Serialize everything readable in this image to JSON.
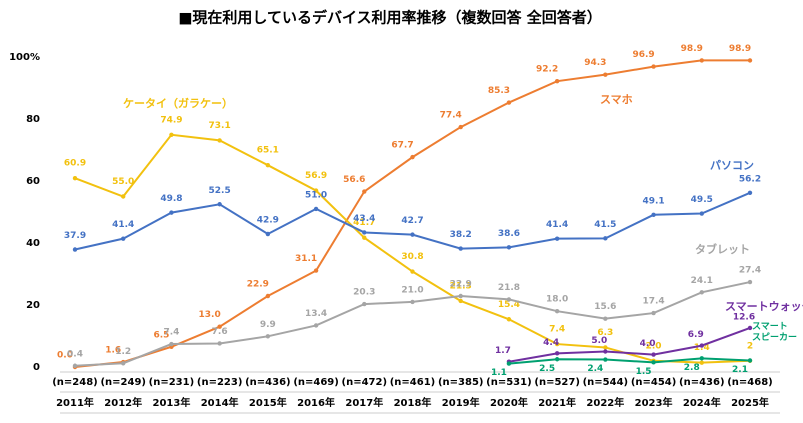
{
  "chart_data": {
    "type": "line",
    "title": "■現在利用しているデバイス利用率推移（複数回答 全回答者）",
    "categories": [
      "2011年",
      "2012年",
      "2013年",
      "2014年",
      "2015年",
      "2016年",
      "2017年",
      "2018年",
      "2019年",
      "2020年",
      "2021年",
      "2022年",
      "2023年",
      "2024年",
      "2025年"
    ],
    "sample_sizes": [
      "(n=248)",
      "(n=249)",
      "(n=231)",
      "(n=223)",
      "(n=436)",
      "(n=469)",
      "(n=472)",
      "(n=461)",
      "(n=385)",
      "(n=531)",
      "(n=527)",
      "(n=544)",
      "(n=454)",
      "(n=436)",
      "(n=468)"
    ],
    "ylim": [
      0,
      100
    ],
    "yticks": [
      0,
      20,
      40,
      60,
      80,
      {
        "value": 100,
        "label": "100%"
      }
    ],
    "grid": false,
    "series": [
      {
        "name": "スマホ",
        "color": "#ED7D31",
        "values": [
          0,
          1.6,
          6.5,
          13,
          22.9,
          31.1,
          56.6,
          67.7,
          77.4,
          85.3,
          92.2,
          94.3,
          96.9,
          98.9,
          98.9
        ],
        "value_labels": [
          "0.0",
          "1.6",
          "6.5",
          "13.0",
          "22.9",
          "31.1",
          "56.6",
          "67.7",
          "77.4",
          "85.3",
          "92.2",
          "94.3",
          "96.9",
          "98.9",
          "98.9"
        ]
      },
      {
        "name": "ケータイ（ガラケー）",
        "color": "#F2C10F",
        "values": [
          60.9,
          55,
          74.9,
          73.1,
          65.1,
          56.9,
          41.7,
          30.8,
          21.3,
          15.4,
          7.4,
          6.3,
          2,
          1.4,
          2
        ],
        "value_labels": [
          "60.9",
          "55.0",
          "74.9",
          "73.1",
          "65.1",
          "56.9",
          "41.7",
          "30.8",
          "21.3",
          "15.4",
          "7.4",
          "6.3",
          "2.0",
          "1.4",
          "2"
        ]
      },
      {
        "name": "パソコン",
        "color": "#4472C4",
        "values": [
          37.9,
          41.4,
          49.8,
          52.5,
          42.9,
          51,
          43.4,
          42.7,
          38.2,
          38.6,
          41.4,
          41.5,
          49.1,
          49.5,
          56.2
        ],
        "value_labels": [
          "37.9",
          "41.4",
          "49.8",
          "52.5",
          "42.9",
          "51.0",
          "43.4",
          "42.7",
          "38.2",
          "38.6",
          "41.4",
          "41.5",
          "49.1",
          "49.5",
          "56.2"
        ]
      },
      {
        "name": "タブレット",
        "color": "#A5A5A5",
        "values": [
          0.4,
          1.2,
          7.4,
          7.6,
          9.9,
          13.4,
          20.3,
          21,
          22.9,
          21.8,
          18,
          15.6,
          17.4,
          24.1,
          27.4
        ],
        "value_labels": [
          "0.4",
          "1.2",
          "7.4",
          "7.6",
          "9.9",
          "13.4",
          "20.3",
          "21.0",
          "22.9",
          "21.8",
          "18.0",
          "15.6",
          "17.4",
          "24.1",
          "27.4"
        ]
      },
      {
        "name": "スマートウォッチ",
        "color": "#7030A0",
        "values": [
          null,
          null,
          null,
          null,
          null,
          null,
          null,
          null,
          null,
          1.7,
          4.4,
          5,
          4,
          6.9,
          12.6
        ],
        "value_labels": [
          null,
          null,
          null,
          null,
          null,
          null,
          null,
          null,
          null,
          "1.7",
          "4.4",
          "5.0",
          "4.0",
          "6.9",
          "12.6"
        ]
      },
      {
        "name": "スマート スピーカー",
        "color": "#00A070",
        "values": [
          null,
          null,
          null,
          null,
          null,
          null,
          null,
          null,
          null,
          1.1,
          2.5,
          2.4,
          1.5,
          2.8,
          2.1
        ],
        "value_labels": [
          null,
          null,
          null,
          null,
          null,
          null,
          null,
          null,
          null,
          "1.1",
          "2.5",
          "2.4",
          "1.5",
          "2.8",
          "2.1"
        ]
      }
    ]
  }
}
